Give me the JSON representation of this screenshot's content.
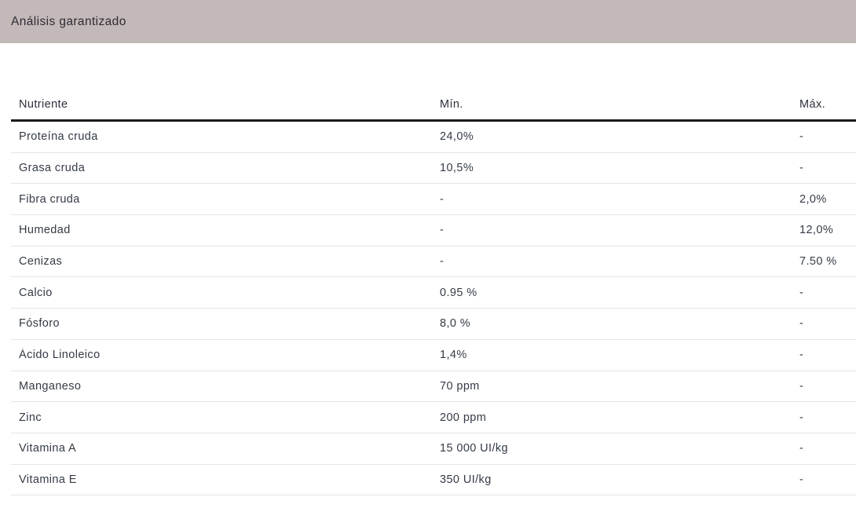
{
  "section": {
    "title": "Análisis garantizado"
  },
  "table": {
    "columns": {
      "nutrient": "Nutriente",
      "min": "Mín.",
      "max": "Máx."
    },
    "rows": [
      {
        "nutrient": "Proteína cruda",
        "min": "24,0%",
        "max": "-"
      },
      {
        "nutrient": "Grasa cruda",
        "min": "10,5%",
        "max": "-"
      },
      {
        "nutrient": "Fibra cruda",
        "min": "-",
        "max": "2,0%"
      },
      {
        "nutrient": "Humedad",
        "min": "-",
        "max": "12,0%"
      },
      {
        "nutrient": "Cenizas",
        "min": "-",
        "max": "7.50 %"
      },
      {
        "nutrient": "Calcio",
        "min": "0.95 %",
        "max": "-"
      },
      {
        "nutrient": "Fósforo",
        "min": "8,0 %",
        "max": "-"
      },
      {
        "nutrient": "Ácido Linoleico",
        "min": "1,4%",
        "max": "-"
      },
      {
        "nutrient": "Manganeso",
        "min": "70 ppm",
        "max": "-"
      },
      {
        "nutrient": "Zinc",
        "min": "200 ppm",
        "max": "-"
      },
      {
        "nutrient": "Vitamina A",
        "min": "15 000 UI/kg",
        "max": "-"
      },
      {
        "nutrient": "Vitamina E",
        "min": "350 UI/kg",
        "max": "-"
      }
    ]
  },
  "colors": {
    "bar_bg": "#c3b9b9",
    "bar_text": "#2e2b33",
    "text": "#343b46",
    "header_rule": "#1b1b20",
    "row_divider": "#e5e5e7",
    "page_bg": "#ffffff"
  }
}
